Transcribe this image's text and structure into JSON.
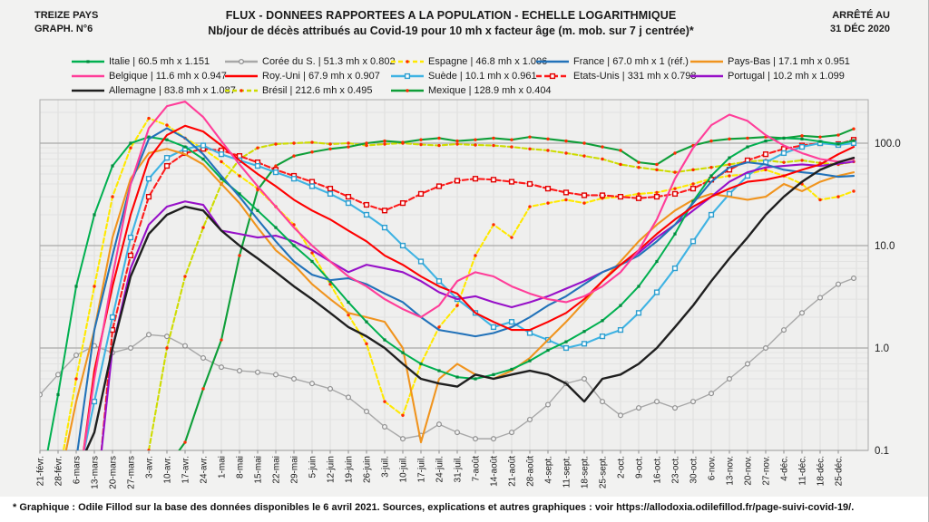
{
  "header": {
    "left1": "TREIZE PAYS",
    "left2": "GRAPH. N°6",
    "title": "FLUX - DONNEES RAPPORTEES A LA POPULATION - ECHELLE LOGARITHMIQUE",
    "subtitle": "Nb/jour de décès attribués au Covid-19 pour 10 mh x facteur âge (m. mob. sur 7 j centrée)*",
    "right1": "ARRÊTÉ AU",
    "right2": "31 DÉC 2020"
  },
  "footer": {
    "note": "* Graphique : Odile Fillod sur la base des données disponibles le 6 avril 2021. Sources, explications et autres graphiques : voir https://allodoxia.odilefillod.fr/page-suivi-covid-19/."
  },
  "chart_data": {
    "type": "line",
    "y_scale": "log",
    "ylim": [
      0.1,
      266
    ],
    "grid": true,
    "legend_position": "top",
    "y_tick_labels": [
      {
        "label": "100.0",
        "value": 100
      },
      {
        "label": "10.0",
        "value": 10
      },
      {
        "label": "1.0",
        "value": 1
      },
      {
        "label": "0.1",
        "value": 0.1
      }
    ],
    "x_tick_labels": [
      "21-févr.",
      "28-févr.",
      "6-mars",
      "13-mars",
      "20-mars",
      "27-mars",
      "3-avr.",
      "10-avr.",
      "17-avr.",
      "24-avr.",
      "1-mai",
      "8-mai",
      "15-mai",
      "22-mai",
      "29-mai",
      "5-juin",
      "12-juin",
      "19-juin",
      "26-juin",
      "3-juil.",
      "10-juil.",
      "17-juil.",
      "24-juil.",
      "31-juil.",
      "7-août",
      "14-août",
      "21-août",
      "28-août",
      "4-sept.",
      "11-sept.",
      "18-sept.",
      "25-sept.",
      "2-oct.",
      "9-oct.",
      "16-oct.",
      "23-oct.",
      "30-oct.",
      "6-nov.",
      "13-nov.",
      "20-nov.",
      "27-nov.",
      "4-déc.",
      "11-déc.",
      "18-déc.",
      "25-déc."
    ],
    "sampling": "hebdomadaire (valeurs estimées), dernier point au 31 déc",
    "series": [
      {
        "key": "italie",
        "name": "Italie",
        "legend_info": "60.5 mh x 1.151",
        "color": "#00B050",
        "dash": null,
        "marker": "sq-fill",
        "marker_color": "#008a3c",
        "values": [
          null,
          0.35,
          4,
          20,
          60,
          100,
          115,
          108,
          92,
          70,
          45,
          32,
          22,
          15,
          10,
          7,
          4.5,
          2.8,
          1.8,
          1.2,
          0.9,
          0.7,
          0.6,
          0.52,
          0.5,
          0.55,
          0.62,
          0.75,
          0.95,
          1.15,
          1.45,
          1.85,
          2.6,
          4,
          7,
          13,
          27,
          48,
          72,
          92,
          105,
          112,
          110,
          104,
          98,
          106
        ]
      },
      {
        "key": "coree",
        "name": "Corée du S.",
        "legend_info": "51.3 mh x 0.802",
        "color": "#a8a8a8",
        "dash": null,
        "marker": "circle-open",
        "marker_color": "#8f8f8f",
        "values": [
          0.35,
          0.55,
          0.85,
          1.05,
          0.9,
          1.0,
          1.35,
          1.3,
          1.05,
          0.8,
          0.65,
          0.6,
          0.58,
          0.55,
          0.5,
          0.45,
          0.4,
          0.33,
          0.24,
          0.17,
          0.13,
          0.14,
          0.18,
          0.15,
          0.13,
          0.13,
          0.15,
          0.2,
          0.28,
          0.45,
          0.5,
          0.3,
          0.22,
          0.26,
          0.3,
          0.26,
          0.3,
          0.36,
          0.5,
          0.7,
          1.0,
          1.5,
          2.2,
          3.1,
          4.2,
          4.8
        ]
      },
      {
        "key": "espagne",
        "name": "Espagne",
        "legend_info": "46.8 mh x 1.006",
        "color": "#ffe900",
        "dash": "5,3",
        "marker": "dot",
        "marker_color": "#ff2a00",
        "values": [
          null,
          0.05,
          0.5,
          4,
          30,
          90,
          175,
          150,
          112,
          88,
          66,
          48,
          36,
          24,
          16,
          8.5,
          4.2,
          2.1,
          1.1,
          0.3,
          0.22,
          0.7,
          1.6,
          2.6,
          8,
          16,
          12,
          24,
          26,
          28,
          26,
          29,
          30,
          32,
          33,
          36,
          40,
          45,
          48,
          50,
          55,
          48,
          40,
          28,
          30,
          34
        ]
      },
      {
        "key": "france",
        "name": "France",
        "legend_info": "67.0 mh x 1 (réf.)",
        "color": "#2272b9",
        "dash": null,
        "marker": null,
        "marker_color": null,
        "values": [
          null,
          0.05,
          0.08,
          1.5,
          8,
          40,
          110,
          140,
          112,
          78,
          48,
          30,
          18,
          11,
          7,
          5.2,
          4.6,
          4.8,
          4.2,
          3.4,
          2.8,
          2.0,
          1.5,
          1.4,
          1.3,
          1.4,
          1.6,
          2.0,
          2.6,
          3.2,
          4.2,
          5.5,
          6.5,
          8,
          11,
          16,
          26,
          42,
          58,
          65,
          62,
          55,
          52,
          50,
          47,
          48
        ]
      },
      {
        "key": "paysbas",
        "name": "Pays-Bas",
        "legend_info": "17.1 mh x 0.951",
        "color": "#f0941e",
        "dash": null,
        "marker": null,
        "marker_color": null,
        "values": [
          null,
          null,
          0.3,
          1.5,
          12,
          45,
          80,
          88,
          78,
          62,
          40,
          26,
          15,
          9,
          6.5,
          4.2,
          3.0,
          2.2,
          2.0,
          1.8,
          1.0,
          0.12,
          0.5,
          0.7,
          0.55,
          0.5,
          0.6,
          0.8,
          1.2,
          1.8,
          2.8,
          4.5,
          7,
          11,
          16,
          22,
          28,
          32,
          30,
          28,
          30,
          40,
          34,
          42,
          48,
          52
        ]
      },
      {
        "key": "belgique",
        "name": "Belgique",
        "legend_info": "11.6 mh x 0.947",
        "color": "#ff3d99",
        "dash": null,
        "marker": null,
        "marker_color": null,
        "values": [
          null,
          null,
          null,
          0.5,
          5,
          40,
          140,
          230,
          255,
          180,
          105,
          62,
          38,
          24,
          15,
          10,
          7,
          5,
          4,
          3,
          2.4,
          2.0,
          2.6,
          4.5,
          5.5,
          5,
          4,
          3.4,
          3,
          2.8,
          3.2,
          4,
          5.5,
          9,
          18,
          45,
          90,
          150,
          190,
          165,
          120,
          95,
          80,
          70,
          66,
          70
        ]
      },
      {
        "key": "royuni",
        "name": "Roy.-Uni",
        "legend_info": "67.9 mh x 0.907",
        "color": "#fe0000",
        "dash": null,
        "marker": null,
        "marker_color": null,
        "values": [
          null,
          null,
          null,
          0.6,
          4,
          20,
          70,
          120,
          148,
          130,
          95,
          68,
          50,
          38,
          28,
          22,
          18,
          14,
          11,
          8,
          6.5,
          5,
          4,
          3.4,
          2.2,
          1.8,
          1.5,
          1.5,
          1.8,
          2.2,
          3,
          4.5,
          6.5,
          9,
          13,
          18,
          24,
          30,
          36,
          42,
          44,
          48,
          55,
          62,
          78,
          92
        ]
      },
      {
        "key": "suede",
        "name": "Suède",
        "legend_info": "10.1 mh x 0.961",
        "color": "#3fb3e3",
        "dash": null,
        "marker": "sq-open",
        "marker_color": "#2d9ecf",
        "values": [
          null,
          null,
          null,
          0.3,
          2,
          12,
          45,
          72,
          88,
          95,
          78,
          68,
          60,
          52,
          45,
          38,
          32,
          26,
          20,
          15,
          10,
          7,
          4.5,
          3,
          2.2,
          1.6,
          1.8,
          1.4,
          1.2,
          1.0,
          1.1,
          1.3,
          1.5,
          2.2,
          3.5,
          6,
          11,
          20,
          32,
          48,
          65,
          80,
          92,
          100,
          96,
          100
        ]
      },
      {
        "key": "etatsunis",
        "name": "Etats-Unis",
        "legend_info": "331 mh x 0.798",
        "color": "#fe1a1a",
        "dash": "6,3",
        "marker": "sq-open",
        "marker_color": "#e00000",
        "values": [
          null,
          null,
          null,
          null,
          1.5,
          8,
          30,
          60,
          80,
          88,
          85,
          75,
          65,
          55,
          48,
          42,
          36,
          30,
          25,
          22,
          26,
          32,
          38,
          43,
          45,
          44,
          42,
          40,
          36,
          33,
          31,
          31,
          30,
          29,
          30,
          32,
          36,
          44,
          55,
          68,
          78,
          88,
          95,
          100,
          98,
          108
        ]
      },
      {
        "key": "portugal",
        "name": "Portugal",
        "legend_info": "10.2 mh x 1.099",
        "color": "#9710c8",
        "dash": null,
        "marker": null,
        "marker_color": null,
        "values": [
          null,
          null,
          null,
          null,
          1,
          6,
          16,
          24,
          27,
          25,
          14,
          13,
          12,
          12.5,
          11,
          9,
          7,
          5.5,
          6.5,
          6,
          5.5,
          4.5,
          3.5,
          3,
          3.2,
          2.8,
          2.5,
          2.8,
          3.2,
          3.8,
          4.5,
          5.5,
          6.5,
          8.5,
          12,
          16,
          22,
          30,
          42,
          52,
          58,
          60,
          62,
          60,
          63,
          66
        ]
      },
      {
        "key": "allemagne",
        "name": "Allemagne",
        "legend_info": "83.8 mh x 1.087",
        "color": "#1f1f1f",
        "dash": null,
        "marker": null,
        "marker_color": null,
        "values": [
          null,
          null,
          null,
          0.15,
          1,
          5,
          13,
          20,
          24,
          22,
          14,
          10,
          7.5,
          5.5,
          4,
          3,
          2.2,
          1.6,
          1.3,
          1.0,
          0.7,
          0.5,
          0.45,
          0.42,
          0.55,
          0.5,
          0.55,
          0.6,
          0.55,
          0.45,
          0.3,
          0.5,
          0.55,
          0.7,
          1.0,
          1.6,
          2.6,
          4.5,
          7.5,
          12,
          20,
          30,
          42,
          55,
          65,
          72
        ]
      },
      {
        "key": "bresil",
        "name": "Brésil",
        "legend_info": "212.6 mh x 0.495",
        "color": "#cedc00",
        "dash": "5,3",
        "marker": "dot",
        "marker_color": "#ff2a00",
        "values": [
          null,
          null,
          null,
          null,
          null,
          null,
          0.1,
          1,
          5,
          15,
          40,
          70,
          90,
          98,
          100,
          102,
          98,
          100,
          95,
          98,
          100,
          97,
          95,
          98,
          96,
          95,
          92,
          88,
          85,
          80,
          75,
          70,
          62,
          58,
          55,
          52,
          55,
          58,
          62,
          66,
          68,
          65,
          68,
          64,
          62,
          66
        ]
      },
      {
        "key": "mexique",
        "name": "Mexique",
        "legend_info": "128.9 mh x 0.404",
        "color": "#0e9e38",
        "dash": null,
        "marker": "dot",
        "marker_color": "#ff2a00",
        "values": [
          null,
          null,
          null,
          null,
          null,
          null,
          null,
          null,
          0.12,
          0.4,
          1.2,
          8,
          35,
          60,
          75,
          82,
          88,
          92,
          100,
          105,
          102,
          108,
          112,
          105,
          108,
          112,
          108,
          115,
          110,
          105,
          100,
          92,
          85,
          65,
          62,
          80,
          95,
          105,
          110,
          112,
          115,
          112,
          118,
          115,
          120,
          138
        ]
      }
    ]
  }
}
